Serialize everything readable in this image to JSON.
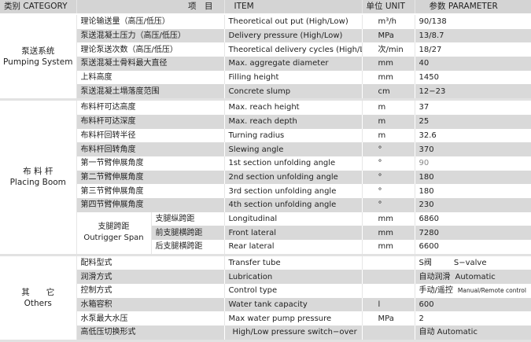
{
  "header": {
    "category": "类别 CATEGORY",
    "item_cn": "项　目",
    "item_en": "ITEM",
    "unit": "单位 UNIT",
    "parameter": "参数  PARAMETER"
  },
  "categories": [
    {
      "cn": "泵送系统",
      "en": "Pumping System",
      "rows": [
        {
          "cn": "理论输送量（高压/低压）",
          "en": "Theoretical out put (High/Low)",
          "unit": "m³/h",
          "value": "90/138"
        },
        {
          "cn": "泵送混凝土压力（高压/低压）",
          "en": "Delivery pressure (High/Low)",
          "unit": "MPa",
          "value": "13/8.7"
        },
        {
          "cn": "理论泵送次数（高压/低压）",
          "en": "Theoretical delivery cycles (High/Low)",
          "unit": "次/min",
          "value": "18/27"
        },
        {
          "cn": "泵送混凝土骨料最大直径",
          "en": "Max. aggregate diameter",
          "unit": "mm",
          "value": "40"
        },
        {
          "cn": "上料高度",
          "en": "Filling height",
          "unit": "mm",
          "value": "1450"
        },
        {
          "cn": "泵送混凝土塌落度范围",
          "en": "Concrete slump",
          "unit": "cm",
          "value": "12−23"
        }
      ]
    },
    {
      "cn": "布 料 杆",
      "en": "Placing Boom",
      "rows": [
        {
          "cn": "布料杆可达高度",
          "en": "Max. reach height",
          "unit": "m",
          "value": "37"
        },
        {
          "cn": "布料杆可达深度",
          "en": "Max. reach depth",
          "unit": "m",
          "value": "25"
        },
        {
          "cn": "布料杆回转半径",
          "en": "Turning radius",
          "unit": "m",
          "value": "32.6"
        },
        {
          "cn": "布料杆回转角度",
          "en": "Slewing angle",
          "unit": "°",
          "value": "370"
        },
        {
          "cn": "第一节臂伸展角度",
          "en": "1st section unfolding angle",
          "unit": "°",
          "value": "90"
        },
        {
          "cn": "第二节臂伸展角度",
          "en": "2nd section unfolding angle",
          "unit": "°",
          "value": "180"
        },
        {
          "cn": "第三节臂伸展角度",
          "en": "3rd section unfolding angle",
          "unit": "°",
          "value": "180"
        },
        {
          "cn": "第四节臂伸展角度",
          "en": "4th section unfolding angle",
          "unit": "°",
          "value": "230"
        }
      ],
      "outrigger": {
        "cn": "支腿跨距",
        "en": "Outrigger Span",
        "rows": [
          {
            "cn": "支腿纵跨距",
            "en": "Longitudinal",
            "unit": "mm",
            "value": "6860"
          },
          {
            "cn": "前支腿横跨距",
            "en": "Front lateral",
            "unit": "mm",
            "value": "7280"
          },
          {
            "cn": "后支腿横跨距",
            "en": "Rear lateral",
            "unit": "mm",
            "value": "6600"
          }
        ]
      }
    },
    {
      "cn": "其　　它",
      "en": "Others",
      "rows": [
        {
          "cn": "配料型式",
          "en": "Transfer tube",
          "unit": "",
          "value": "S阀",
          "value2": "S−valve"
        },
        {
          "cn": "润滑方式",
          "en": "Lubrication",
          "unit": "",
          "value": "自动润滑",
          "value2": "Automatic"
        },
        {
          "cn": "控制方式",
          "en": "Control type",
          "unit": "",
          "value": "手动/遥控",
          "value2": "Manual/Remote control"
        },
        {
          "cn": "水箱容积",
          "en": "Water tank capacity",
          "unit": "l",
          "value": "600"
        },
        {
          "cn": "水泵最大水压",
          "en": "Max water pump pressure",
          "unit": "MPa",
          "value": "2"
        },
        {
          "cn": "高低压切换形式",
          "en": "High/Low pressure switch−over",
          "unit": "",
          "value": "自动 Automatic"
        }
      ]
    }
  ]
}
